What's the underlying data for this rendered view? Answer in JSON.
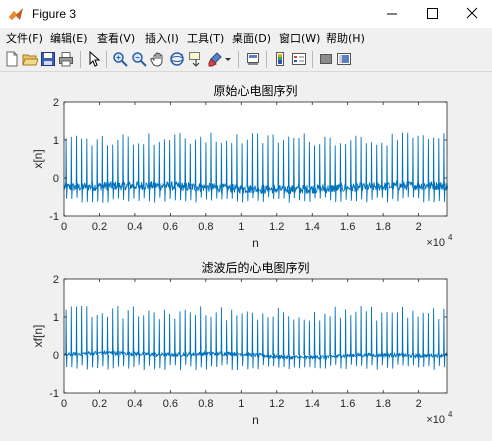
{
  "window": {
    "title": "Figure 3"
  },
  "menu": [
    {
      "label": "文件(F)",
      "underline": "F"
    },
    {
      "label": "编辑(E)",
      "underline": "E"
    },
    {
      "label": "查看(V)",
      "underline": "V"
    },
    {
      "label": "插入(I)",
      "underline": "I"
    },
    {
      "label": "工具(T)",
      "underline": "T"
    },
    {
      "label": "桌面(D)",
      "underline": "D"
    },
    {
      "label": "窗口(W)",
      "underline": "W"
    },
    {
      "label": "帮助(H)",
      "underline": "H"
    }
  ],
  "toolbar": {
    "icons": [
      "new-figure-icon",
      "open-file-icon",
      "save-icon",
      "print-icon",
      "pointer-icon",
      "zoom-in-icon",
      "zoom-out-icon",
      "pan-icon",
      "rotate-3d-icon",
      "data-cursor-icon",
      "brush-icon",
      "brush-dropdown-icon",
      "link-plot-icon",
      "colorbar-icon",
      "legend-icon",
      "hide-plot-tools-icon",
      "show-plot-tools-icon"
    ]
  },
  "colors": {
    "signal": "#0072bd",
    "axes": "#262626",
    "background": "#f0f0f0"
  },
  "chart_data": [
    {
      "type": "line",
      "title": "原始心电图序列",
      "xlabel": "n",
      "ylabel": "x[n]",
      "xlim": [
        0,
        21600
      ],
      "ylim": [
        -1,
        2
      ],
      "xticks": [
        0,
        2000,
        4000,
        6000,
        8000,
        10000,
        12000,
        14000,
        16000,
        18000,
        20000
      ],
      "xtick_labels": [
        "0",
        "0.2",
        "0.4",
        "0.6",
        "0.8",
        "1",
        "1.2",
        "1.4",
        "1.6",
        "1.8",
        "2"
      ],
      "x_exponent": "×10",
      "x_exponent_power": "4",
      "yticks": [
        -1,
        0,
        1,
        2
      ],
      "ytick_labels": [
        "-1",
        "0",
        "1",
        "2"
      ],
      "grid": false,
      "series_description_values": {
        "baseline": -0.25,
        "noise_amplitude": 0.12,
        "beat_count": 74,
        "peak_min": 0.85,
        "peak_max": 1.2,
        "trough": -0.65
      }
    },
    {
      "type": "line",
      "title": "滤波后的心电图序列",
      "xlabel": "n",
      "ylabel": "xf[n]",
      "xlim": [
        0,
        21600
      ],
      "ylim": [
        -1,
        2
      ],
      "xticks": [
        0,
        2000,
        4000,
        6000,
        8000,
        10000,
        12000,
        14000,
        16000,
        18000,
        20000
      ],
      "xtick_labels": [
        "0",
        "0.2",
        "0.4",
        "0.6",
        "0.8",
        "1",
        "1.2",
        "1.4",
        "1.6",
        "1.8",
        "2"
      ],
      "x_exponent": "×10",
      "x_exponent_power": "4",
      "yticks": [
        -1,
        0,
        1,
        2
      ],
      "ytick_labels": [
        "-1",
        "0",
        "1",
        "2"
      ],
      "grid": false,
      "series_description_values": {
        "baseline": 0.0,
        "noise_amplitude": 0.05,
        "beat_count": 74,
        "peak_min": 0.9,
        "peak_max": 1.3,
        "trough": -0.4
      }
    }
  ]
}
